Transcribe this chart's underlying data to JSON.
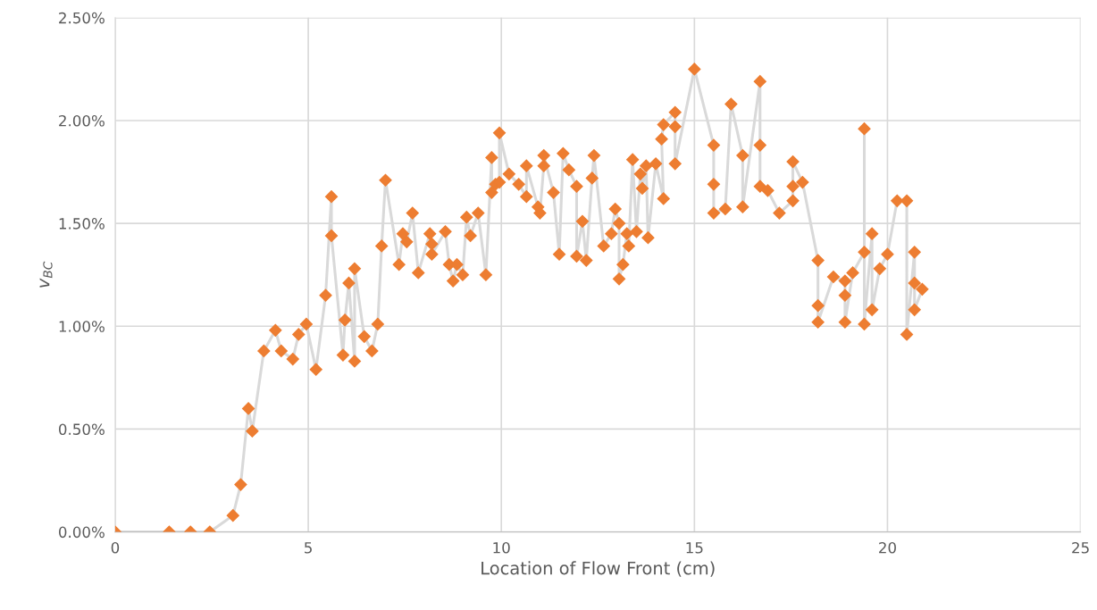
{
  "chart_data": {
    "type": "line",
    "xlabel": "Location of Flow Front (cm)",
    "ylabel": "v$_{BC}$",
    "xlim": [
      0,
      25
    ],
    "xticks": [
      0,
      5,
      10,
      15,
      20,
      25
    ],
    "ylim": [
      0,
      2.5
    ],
    "yticks": [
      {
        "value": 0,
        "label": "0.00%"
      },
      {
        "value": 0.5,
        "label": "0.50%"
      },
      {
        "value": 1,
        "label": "1.00%"
      },
      {
        "value": 1.5,
        "label": "1.50%"
      },
      {
        "value": 2,
        "label": "2.00%"
      },
      {
        "value": 2.5,
        "label": "2.50%"
      }
    ],
    "grid": true,
    "marker": "diamond",
    "line_style": "solid",
    "legend": false,
    "series": [
      {
        "color": "#ed7d31",
        "x": [
          0,
          1.4,
          1.95,
          2.45,
          3.05,
          3.25,
          3.45,
          3.55,
          3.85,
          4.15,
          4.3,
          4.6,
          4.75,
          4.95,
          5.2,
          5.45,
          5.6,
          5.6,
          5.9,
          5.95,
          6.05,
          6.2,
          6.2,
          6.45,
          6.65,
          6.8,
          6.9,
          7.0,
          7.35,
          7.45,
          7.55,
          7.7,
          7.85,
          8.15,
          8.2,
          8.2,
          8.55,
          8.65,
          8.75,
          8.85,
          9.0,
          9.1,
          9.2,
          9.4,
          9.6,
          9.75,
          9.75,
          9.85,
          9.95,
          9.95,
          10.2,
          10.45,
          10.65,
          10.65,
          10.95,
          11.0,
          11.1,
          11.1,
          11.35,
          11.5,
          11.6,
          11.75,
          11.95,
          11.95,
          12.1,
          12.2,
          12.35,
          12.4,
          12.65,
          12.85,
          12.95,
          13.05,
          13.05,
          13.15,
          13.25,
          13.3,
          13.4,
          13.5,
          13.6,
          13.65,
          13.75,
          13.8,
          14.0,
          14.2,
          14.15,
          14.2,
          14.5,
          14.5,
          14.5,
          15.0,
          15.5,
          15.5,
          15.5,
          15.8,
          15.95,
          16.25,
          16.25,
          16.7,
          16.7,
          16.7,
          16.9,
          17.2,
          17.55,
          17.55,
          17.55,
          17.8,
          18.2,
          18.2,
          18.2,
          18.6,
          18.9,
          18.9,
          18.9,
          19.1,
          19.4,
          19.4,
          19.4,
          19.6,
          19.6,
          19.8,
          20.0,
          20.25,
          20.5,
          20.5,
          20.7,
          20.7,
          20.7,
          20.9
        ],
        "values": [
          0,
          0,
          0,
          0,
          0.08,
          0.23,
          0.6,
          0.49,
          0.88,
          0.98,
          0.88,
          0.84,
          0.96,
          1.01,
          0.79,
          1.15,
          1.63,
          1.44,
          0.86,
          1.03,
          1.21,
          0.83,
          1.28,
          0.95,
          0.88,
          1.01,
          1.39,
          1.71,
          1.3,
          1.45,
          1.41,
          1.55,
          1.26,
          1.45,
          1.4,
          1.35,
          1.46,
          1.3,
          1.22,
          1.3,
          1.25,
          1.53,
          1.44,
          1.55,
          1.25,
          1.82,
          1.65,
          1.69,
          1.7,
          1.94,
          1.74,
          1.69,
          1.63,
          1.78,
          1.58,
          1.55,
          1.78,
          1.83,
          1.65,
          1.35,
          1.84,
          1.76,
          1.68,
          1.34,
          1.51,
          1.32,
          1.72,
          1.83,
          1.39,
          1.45,
          1.57,
          1.5,
          1.23,
          1.3,
          1.45,
          1.39,
          1.81,
          1.46,
          1.74,
          1.67,
          1.78,
          1.43,
          1.79,
          1.62,
          1.91,
          1.98,
          2.04,
          1.97,
          1.79,
          2.25,
          1.88,
          1.69,
          1.55,
          1.57,
          2.08,
          1.83,
          1.58,
          2.19,
          1.88,
          1.68,
          1.66,
          1.55,
          1.61,
          1.68,
          1.8,
          1.7,
          1.32,
          1.1,
          1.02,
          1.24,
          1.22,
          1.15,
          1.02,
          1.26,
          1.36,
          1.96,
          1.01,
          1.45,
          1.08,
          1.28,
          1.35,
          1.61,
          1.61,
          0.96,
          1.36,
          1.21,
          1.08,
          1.18
        ]
      }
    ]
  }
}
